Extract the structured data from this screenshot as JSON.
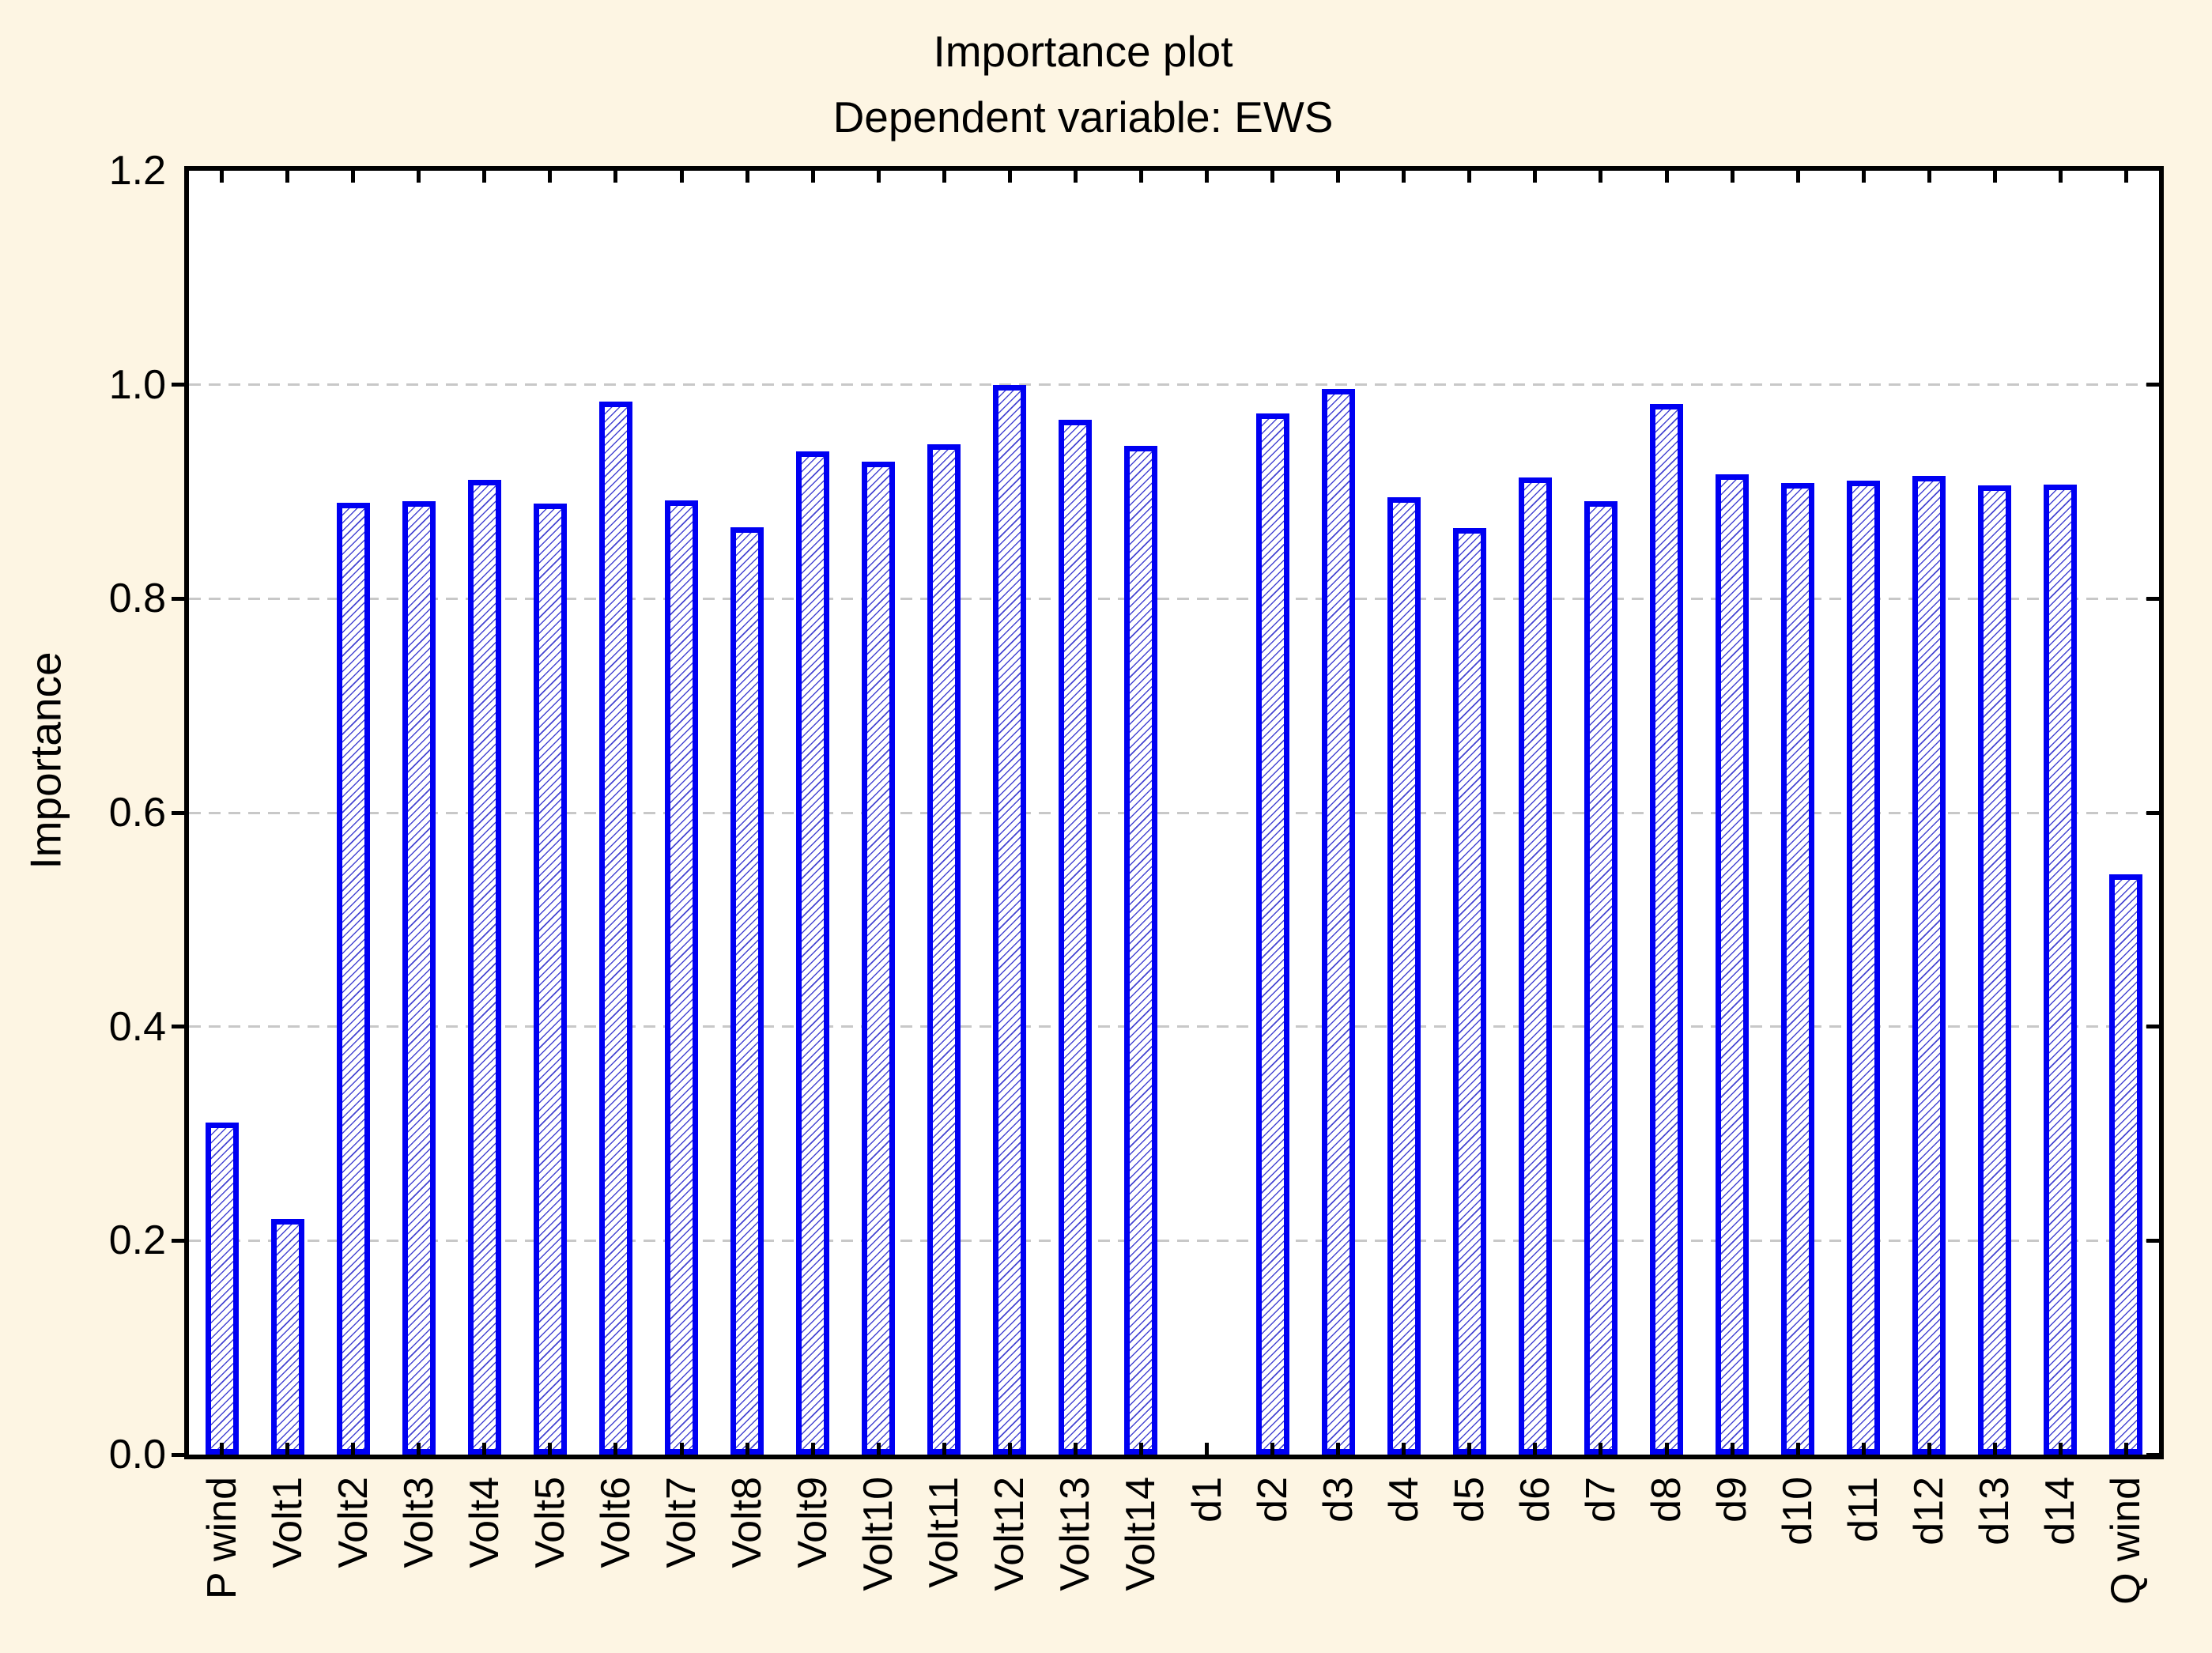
{
  "page": {
    "background_color": "#FDF5E3",
    "plot_background_color": "#FFFFFF",
    "axis_color": "#000000",
    "gridline_color": "#C8C8C8",
    "bar_border_color": "#0000F2",
    "bar_hatch_color": "#4646D2"
  },
  "chart_data": {
    "type": "bar",
    "title": "Importance plot",
    "subtitle": "Dependent variable: EWS",
    "xlabel": "",
    "ylabel": "Importance",
    "ylim": [
      0.0,
      1.2
    ],
    "yticks": [
      0.0,
      0.2,
      0.4,
      0.6,
      0.8,
      1.0,
      1.2
    ],
    "ytick_labels": [
      "0.0",
      "0.2",
      "0.4",
      "0.6",
      "0.8",
      "1.0",
      "1.2"
    ],
    "grid": "horizontal dashed at 0.2 steps",
    "legend_position": "none",
    "bar_style": "white fill with blue diagonal hatch, thick blue border",
    "categories": [
      "P wind",
      "Volt1",
      "Volt2",
      "Volt3",
      "Volt4",
      "Volt5",
      "Volt6",
      "Volt7",
      "Volt8",
      "Volt9",
      "Volt10",
      "Volt11",
      "Volt12",
      "Volt13",
      "Volt14",
      "d1",
      "d2",
      "d3",
      "d4",
      "d5",
      "d6",
      "d7",
      "d8",
      "d9",
      "d10",
      "d11",
      "d12",
      "d13",
      "d14",
      "Q wind"
    ],
    "values": [
      0.31,
      0.22,
      0.89,
      0.891,
      0.911,
      0.889,
      0.984,
      0.892,
      0.867,
      0.938,
      0.928,
      0.944,
      1.0,
      0.967,
      0.943,
      0.0,
      0.973,
      0.996,
      0.895,
      0.866,
      0.913,
      0.891,
      0.982,
      0.916,
      0.908,
      0.91,
      0.915,
      0.906,
      0.907,
      0.542
    ]
  }
}
